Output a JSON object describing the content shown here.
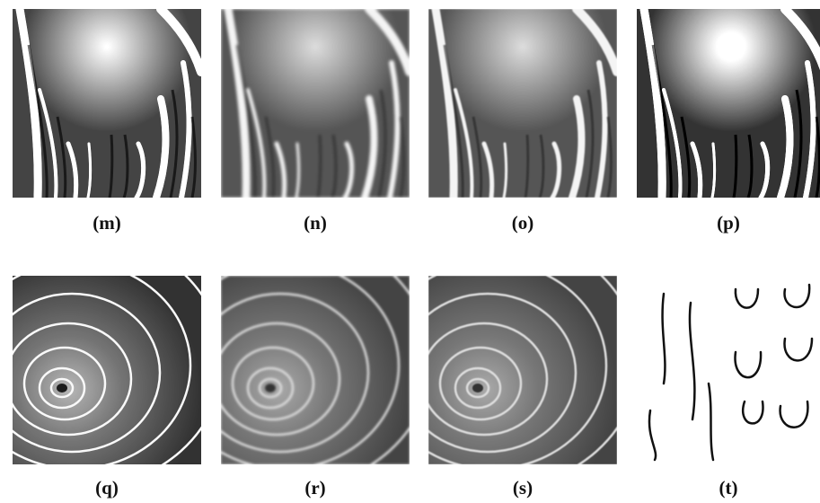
{
  "panels": [
    {
      "label": "(m)"
    },
    {
      "label": "(n)"
    },
    {
      "label": "(o)"
    },
    {
      "label": "(p)"
    },
    {
      "label": "(q)"
    },
    {
      "label": "(r)"
    },
    {
      "label": "(s)"
    },
    {
      "label": "(t)"
    }
  ]
}
